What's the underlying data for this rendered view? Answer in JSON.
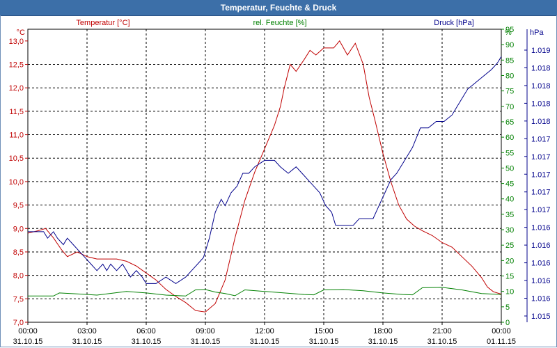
{
  "window": {
    "title": "Temperatur, Feuchte & Druck"
  },
  "colors": {
    "temperature": "#c00000",
    "humidity": "#008000",
    "pressure": "#00008b",
    "titlebar": "#3c6fa8"
  },
  "chart_data": {
    "type": "line",
    "title": "Temperatur, Feuchte & Druck",
    "x_axis": {
      "ticks": [
        {
          "time": "00:00",
          "date": "31.10.15"
        },
        {
          "time": "03:00",
          "date": "31.10.15"
        },
        {
          "time": "06:00",
          "date": "31.10.15"
        },
        {
          "time": "09:00",
          "date": "31.10.15"
        },
        {
          "time": "12:00",
          "date": "31.10.15"
        },
        {
          "time": "15:00",
          "date": "31.10.15"
        },
        {
          "time": "18:00",
          "date": "31.10.15"
        },
        {
          "time": "21:00",
          "date": "31.10.15"
        },
        {
          "time": "00:00",
          "date": "01.11.15"
        }
      ],
      "range_hours": [
        0,
        24
      ]
    },
    "axes": {
      "temperature": {
        "label": "Temperatur [°C]",
        "unit": "°C",
        "range": [
          7.0,
          13.25
        ],
        "ticks": [
          "13,0",
          "12,5",
          "12,0",
          "11,5",
          "11,0",
          "10,5",
          "10,0",
          "9,5",
          "9,0",
          "8,5",
          "8,0",
          "7,5",
          "7,0"
        ]
      },
      "humidity": {
        "label": "rel. Feuchte [%]",
        "unit": "%",
        "range": [
          0,
          95
        ],
        "ticks": [
          "95",
          "90",
          "85",
          "80",
          "75",
          "70",
          "65",
          "60",
          "55",
          "50",
          "45",
          "40",
          "35",
          "30",
          "25",
          "20",
          "15",
          "10",
          "5",
          "0"
        ]
      },
      "pressure": {
        "label": "Druck [hPa]",
        "unit": "hPa",
        "ticks": [
          "1.019",
          "1.018",
          "1.018",
          "1.018",
          "1.018",
          "1.017",
          "1.017",
          "1.017",
          "1.017",
          "1.017",
          "1.016",
          "1.016",
          "1.016",
          "1.016",
          "1.016",
          "1.015"
        ]
      }
    },
    "series": [
      {
        "name": "Temperatur [°C]",
        "axis": "temperature",
        "points": [
          [
            0.0,
            8.9
          ],
          [
            0.5,
            8.95
          ],
          [
            0.9,
            9.0
          ],
          [
            1.3,
            8.8
          ],
          [
            1.7,
            8.55
          ],
          [
            2.0,
            8.4
          ],
          [
            2.5,
            8.5
          ],
          [
            3.0,
            8.4
          ],
          [
            3.5,
            8.35
          ],
          [
            4.0,
            8.35
          ],
          [
            4.5,
            8.35
          ],
          [
            5.0,
            8.3
          ],
          [
            5.5,
            8.2
          ],
          [
            6.0,
            8.05
          ],
          [
            6.5,
            7.9
          ],
          [
            7.0,
            7.7
          ],
          [
            7.5,
            7.55
          ],
          [
            8.0,
            7.42
          ],
          [
            8.5,
            7.25
          ],
          [
            9.0,
            7.22
          ],
          [
            9.5,
            7.4
          ],
          [
            10.0,
            7.9
          ],
          [
            10.5,
            8.8
          ],
          [
            11.0,
            9.6
          ],
          [
            11.5,
            10.2
          ],
          [
            12.0,
            10.7
          ],
          [
            12.5,
            11.2
          ],
          [
            12.8,
            11.6
          ],
          [
            13.0,
            12.0
          ],
          [
            13.3,
            12.5
          ],
          [
            13.6,
            12.35
          ],
          [
            14.0,
            12.6
          ],
          [
            14.3,
            12.8
          ],
          [
            14.6,
            12.7
          ],
          [
            15.0,
            12.85
          ],
          [
            15.5,
            12.85
          ],
          [
            15.8,
            13.0
          ],
          [
            16.2,
            12.7
          ],
          [
            16.6,
            12.95
          ],
          [
            17.0,
            12.5
          ],
          [
            17.3,
            11.8
          ],
          [
            17.6,
            11.3
          ],
          [
            18.0,
            10.6
          ],
          [
            18.4,
            10.0
          ],
          [
            18.8,
            9.5
          ],
          [
            19.2,
            9.2
          ],
          [
            19.6,
            9.05
          ],
          [
            20.0,
            8.95
          ],
          [
            20.5,
            8.85
          ],
          [
            21.0,
            8.7
          ],
          [
            21.5,
            8.6
          ],
          [
            22.0,
            8.4
          ],
          [
            22.5,
            8.2
          ],
          [
            23.0,
            7.95
          ],
          [
            23.3,
            7.75
          ],
          [
            23.6,
            7.65
          ],
          [
            24.0,
            7.6
          ]
        ]
      },
      {
        "name": "rel. Feuchte [%]",
        "axis": "humidity",
        "points": [
          [
            0.0,
            8.5
          ],
          [
            1.3,
            8.5
          ],
          [
            1.6,
            9.5
          ],
          [
            2.5,
            9.2
          ],
          [
            3.5,
            8.8
          ],
          [
            4.0,
            9.2
          ],
          [
            5.0,
            10.0
          ],
          [
            6.0,
            9.5
          ],
          [
            7.0,
            8.8
          ],
          [
            8.0,
            8.5
          ],
          [
            8.5,
            10.5
          ],
          [
            9.0,
            10.6
          ],
          [
            9.5,
            9.8
          ],
          [
            10.0,
            9.3
          ],
          [
            10.5,
            8.6
          ],
          [
            11.0,
            10.5
          ],
          [
            12.0,
            10.0
          ],
          [
            13.0,
            9.5
          ],
          [
            14.0,
            9.0
          ],
          [
            14.5,
            8.9
          ],
          [
            15.0,
            10.5
          ],
          [
            16.0,
            10.6
          ],
          [
            17.0,
            10.2
          ],
          [
            18.0,
            9.5
          ],
          [
            19.0,
            9.0
          ],
          [
            19.5,
            8.9
          ],
          [
            20.0,
            11.2
          ],
          [
            21.0,
            11.3
          ],
          [
            22.0,
            10.5
          ],
          [
            23.0,
            9.3
          ],
          [
            24.0,
            9.0
          ]
        ]
      },
      {
        "name": "Druck [hPa]",
        "axis": "pressure",
        "points": [
          [
            0.0,
            1.0163
          ],
          [
            0.8,
            1.0163
          ],
          [
            1.0,
            1.0162
          ],
          [
            1.3,
            1.0163
          ],
          [
            1.5,
            1.0162
          ],
          [
            1.8,
            1.0161
          ],
          [
            2.0,
            1.0162
          ],
          [
            2.3,
            1.0161
          ],
          [
            2.6,
            1.016
          ],
          [
            2.9,
            1.0159
          ],
          [
            3.2,
            1.0158
          ],
          [
            3.5,
            1.0157
          ],
          [
            3.8,
            1.0158
          ],
          [
            4.0,
            1.0157
          ],
          [
            4.2,
            1.0158
          ],
          [
            4.5,
            1.0157
          ],
          [
            4.8,
            1.0158
          ],
          [
            5.0,
            1.0157
          ],
          [
            5.2,
            1.0156
          ],
          [
            5.5,
            1.0157
          ],
          [
            5.8,
            1.0156
          ],
          [
            6.0,
            1.0155
          ],
          [
            6.5,
            1.0155
          ],
          [
            7.0,
            1.0156
          ],
          [
            7.5,
            1.0155
          ],
          [
            8.0,
            1.0156
          ],
          [
            8.3,
            1.0157
          ],
          [
            8.6,
            1.0158
          ],
          [
            8.9,
            1.0159
          ],
          [
            9.2,
            1.0162
          ],
          [
            9.5,
            1.0166
          ],
          [
            9.8,
            1.0168
          ],
          [
            10.0,
            1.0167
          ],
          [
            10.3,
            1.0169
          ],
          [
            10.6,
            1.017
          ],
          [
            10.9,
            1.0172
          ],
          [
            11.2,
            1.0172
          ],
          [
            11.5,
            1.0173
          ],
          [
            12.0,
            1.0174
          ],
          [
            12.5,
            1.0174
          ],
          [
            12.8,
            1.0173
          ],
          [
            13.2,
            1.0172
          ],
          [
            13.6,
            1.0173
          ],
          [
            13.9,
            1.0172
          ],
          [
            14.2,
            1.0171
          ],
          [
            14.5,
            1.017
          ],
          [
            14.8,
            1.0169
          ],
          [
            15.1,
            1.0167
          ],
          [
            15.4,
            1.0166
          ],
          [
            15.6,
            1.0164
          ],
          [
            16.0,
            1.0164
          ],
          [
            16.5,
            1.0164
          ],
          [
            16.8,
            1.0165
          ],
          [
            17.1,
            1.0165
          ],
          [
            17.5,
            1.0165
          ],
          [
            17.8,
            1.0167
          ],
          [
            18.1,
            1.0169
          ],
          [
            18.4,
            1.0171
          ],
          [
            18.7,
            1.0172
          ],
          [
            19.1,
            1.0174
          ],
          [
            19.5,
            1.0176
          ],
          [
            19.9,
            1.0179
          ],
          [
            20.3,
            1.0179
          ],
          [
            20.7,
            1.018
          ],
          [
            21.1,
            1.018
          ],
          [
            21.5,
            1.0181
          ],
          [
            21.9,
            1.0183
          ],
          [
            22.3,
            1.0185
          ],
          [
            22.7,
            1.0186
          ],
          [
            23.1,
            1.0187
          ],
          [
            23.5,
            1.0188
          ],
          [
            23.8,
            1.0189
          ],
          [
            24.0,
            1.019
          ]
        ]
      }
    ]
  }
}
